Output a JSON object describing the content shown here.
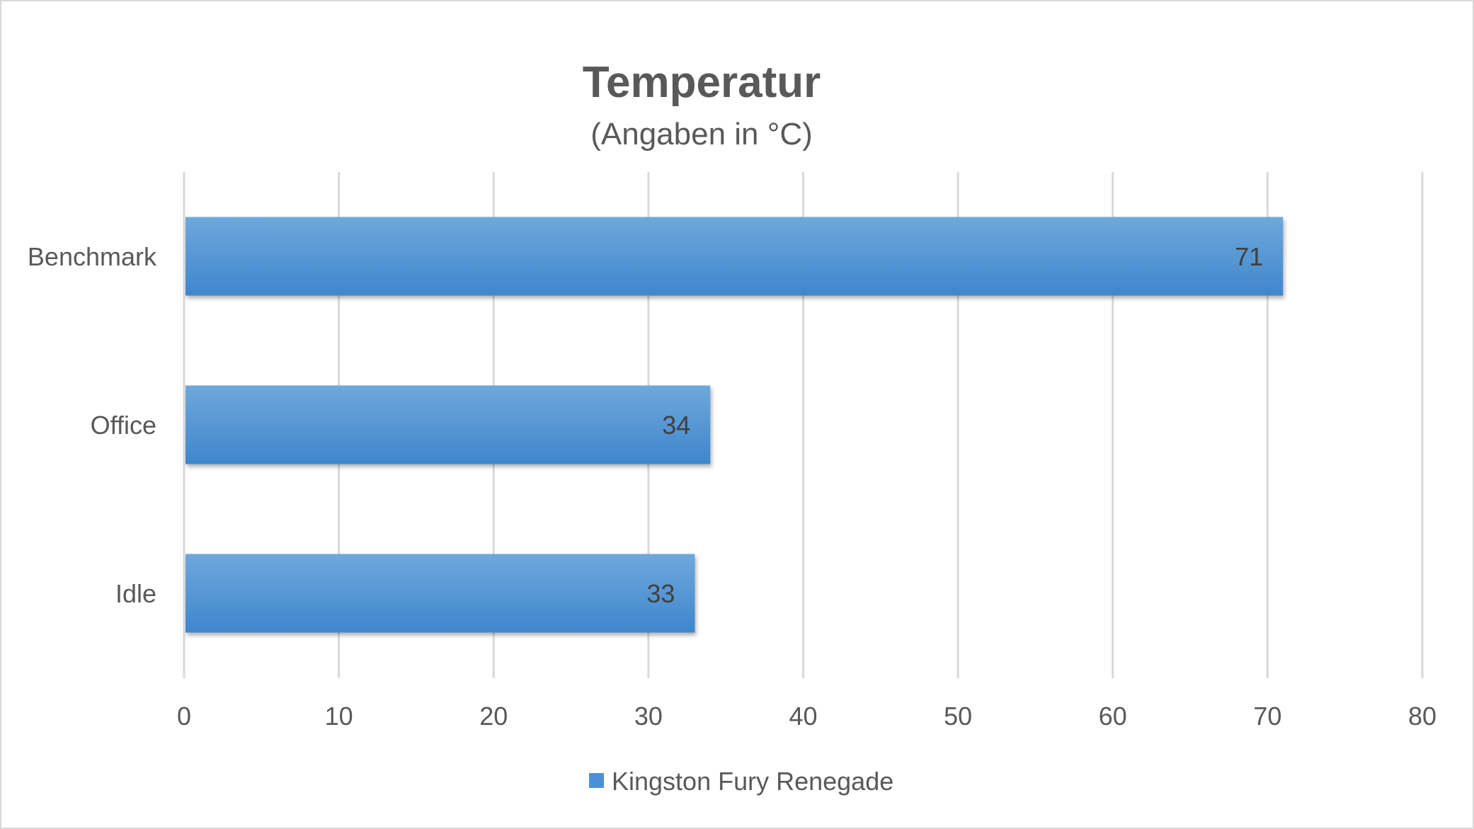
{
  "chart_data": {
    "type": "bar",
    "orientation": "horizontal",
    "title": "Temperatur",
    "subtitle": "(Angaben in °C)",
    "categories": [
      "Benchmark",
      "Office",
      "Idle"
    ],
    "series": [
      {
        "name": "Kingston Fury Renegade",
        "values": [
          71,
          34,
          33
        ],
        "color": "#5b9bd5"
      }
    ],
    "xlim": [
      0,
      80
    ],
    "xticks": [
      "0",
      "10",
      "20",
      "30",
      "40",
      "50",
      "60",
      "70",
      "80"
    ],
    "grid": true,
    "data_labels": true,
    "legend_position": "bottom"
  }
}
